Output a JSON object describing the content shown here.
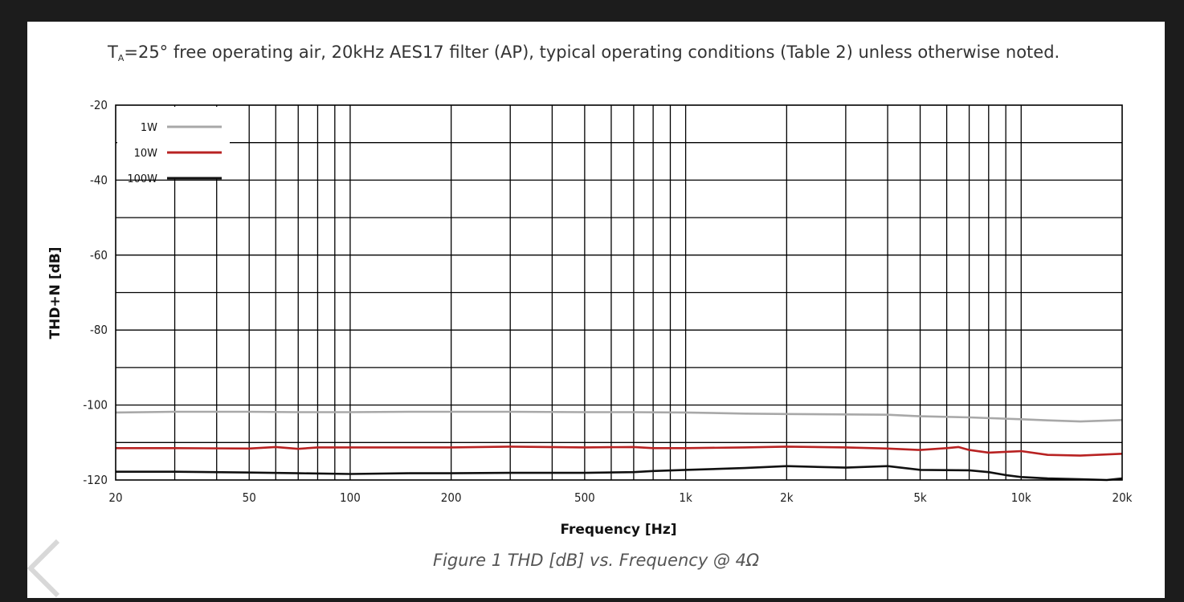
{
  "conditions": {
    "prefix": "T",
    "subscript": "A",
    "suffix": "=25° free operating air, 20kHz AES17 filter (AP), typical operating conditions (Table 2) unless otherwise noted."
  },
  "caption": "Figure 1 THD [dB] vs. Frequency @ 4Ω",
  "chart_data": {
    "type": "line",
    "xlabel": "Frequency [Hz]",
    "ylabel": "THD+N [dB]",
    "xscale": "log",
    "xlim": [
      20,
      20000
    ],
    "ylim": [
      -120,
      -20
    ],
    "grid": true,
    "legend_position": "top-left",
    "x_ticks": [
      20,
      50,
      100,
      200,
      500,
      1000,
      2000,
      5000,
      10000,
      20000
    ],
    "x_tick_labels": [
      "20",
      "50",
      "100",
      "200",
      "500",
      "1k",
      "2k",
      "5k",
      "10k",
      "20k"
    ],
    "y_ticks": [
      -20,
      -40,
      -60,
      -80,
      -100,
      -120
    ],
    "y_tick_labels": [
      "-20",
      "-40",
      "-60",
      "-80",
      "-100",
      "-120"
    ],
    "series": [
      {
        "name": "1W",
        "color": "#a8a8a8",
        "x": [
          20,
          30,
          50,
          70,
          100,
          150,
          200,
          300,
          500,
          700,
          1000,
          1500,
          2000,
          3000,
          4000,
          5000,
          7000,
          10000,
          12000,
          15000,
          20000
        ],
        "y": [
          -102,
          -101.8,
          -101.8,
          -101.9,
          -101.9,
          -101.8,
          -101.8,
          -101.8,
          -101.9,
          -101.9,
          -102,
          -102.3,
          -102.4,
          -102.5,
          -102.6,
          -103,
          -103.3,
          -103.8,
          -104.1,
          -104.4,
          -104
        ]
      },
      {
        "name": "10W",
        "color": "#b82222",
        "x": [
          20,
          30,
          50,
          60,
          70,
          80,
          100,
          200,
          300,
          500,
          700,
          800,
          1000,
          1500,
          2000,
          3000,
          4000,
          5000,
          6000,
          6500,
          7000,
          8000,
          10000,
          12000,
          15000,
          20000
        ],
        "y": [
          -111.5,
          -111.5,
          -111.6,
          -111.2,
          -111.7,
          -111.3,
          -111.3,
          -111.3,
          -111.1,
          -111.3,
          -111.2,
          -111.5,
          -111.5,
          -111.3,
          -111.1,
          -111.3,
          -111.6,
          -112,
          -111.5,
          -111.2,
          -112,
          -112.7,
          -112.3,
          -113.3,
          -113.5,
          -113
        ]
      },
      {
        "name": "100W",
        "color": "#111111",
        "x": [
          20,
          30,
          50,
          70,
          100,
          150,
          200,
          300,
          500,
          700,
          800,
          1000,
          1500,
          2000,
          3000,
          4000,
          5000,
          7000,
          8000,
          9000,
          10000,
          12000,
          15000,
          18000,
          20000
        ],
        "y": [
          -117.8,
          -117.8,
          -118,
          -118.2,
          -118.4,
          -118.2,
          -118.2,
          -118.1,
          -118.1,
          -117.9,
          -117.6,
          -117.3,
          -116.8,
          -116.3,
          -116.7,
          -116.3,
          -117.3,
          -117.4,
          -117.9,
          -118.7,
          -119.2,
          -119.6,
          -119.8,
          -120,
          -119.6
        ]
      }
    ]
  }
}
